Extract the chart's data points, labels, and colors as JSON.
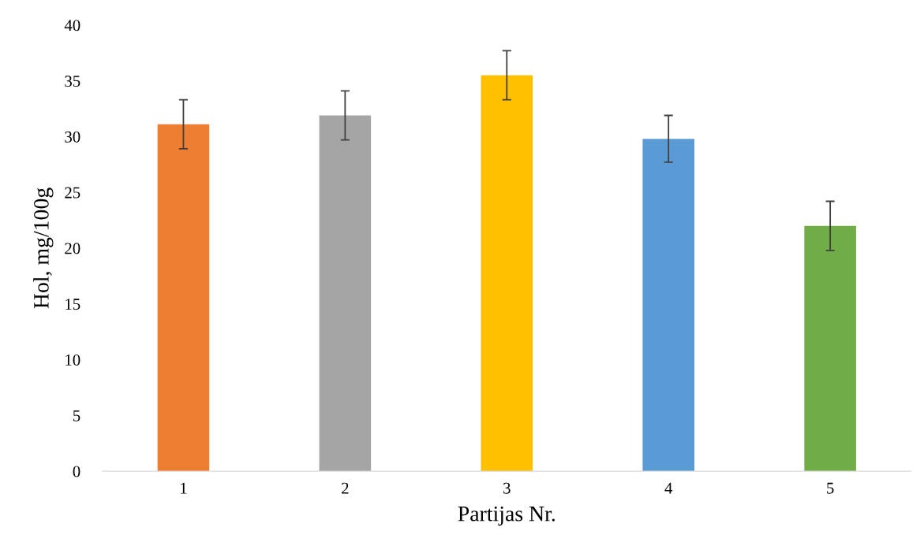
{
  "chart_data": {
    "type": "bar",
    "xlabel": "Partijas Nr.",
    "ylabel": "Hol, mg/100g",
    "categories": [
      "1",
      "2",
      "3",
      "4",
      "5"
    ],
    "values": [
      31.1,
      31.9,
      35.5,
      29.8,
      22.0
    ],
    "errors": [
      2.2,
      2.2,
      2.2,
      2.1,
      2.2
    ],
    "colors": [
      "#ed7d31",
      "#a5a5a5",
      "#ffc000",
      "#5b9bd5",
      "#70ad47"
    ],
    "ylim": [
      0,
      40
    ],
    "yticks": [
      0,
      5,
      10,
      15,
      20,
      25,
      30,
      35,
      40
    ],
    "grid": false,
    "legend": false
  }
}
